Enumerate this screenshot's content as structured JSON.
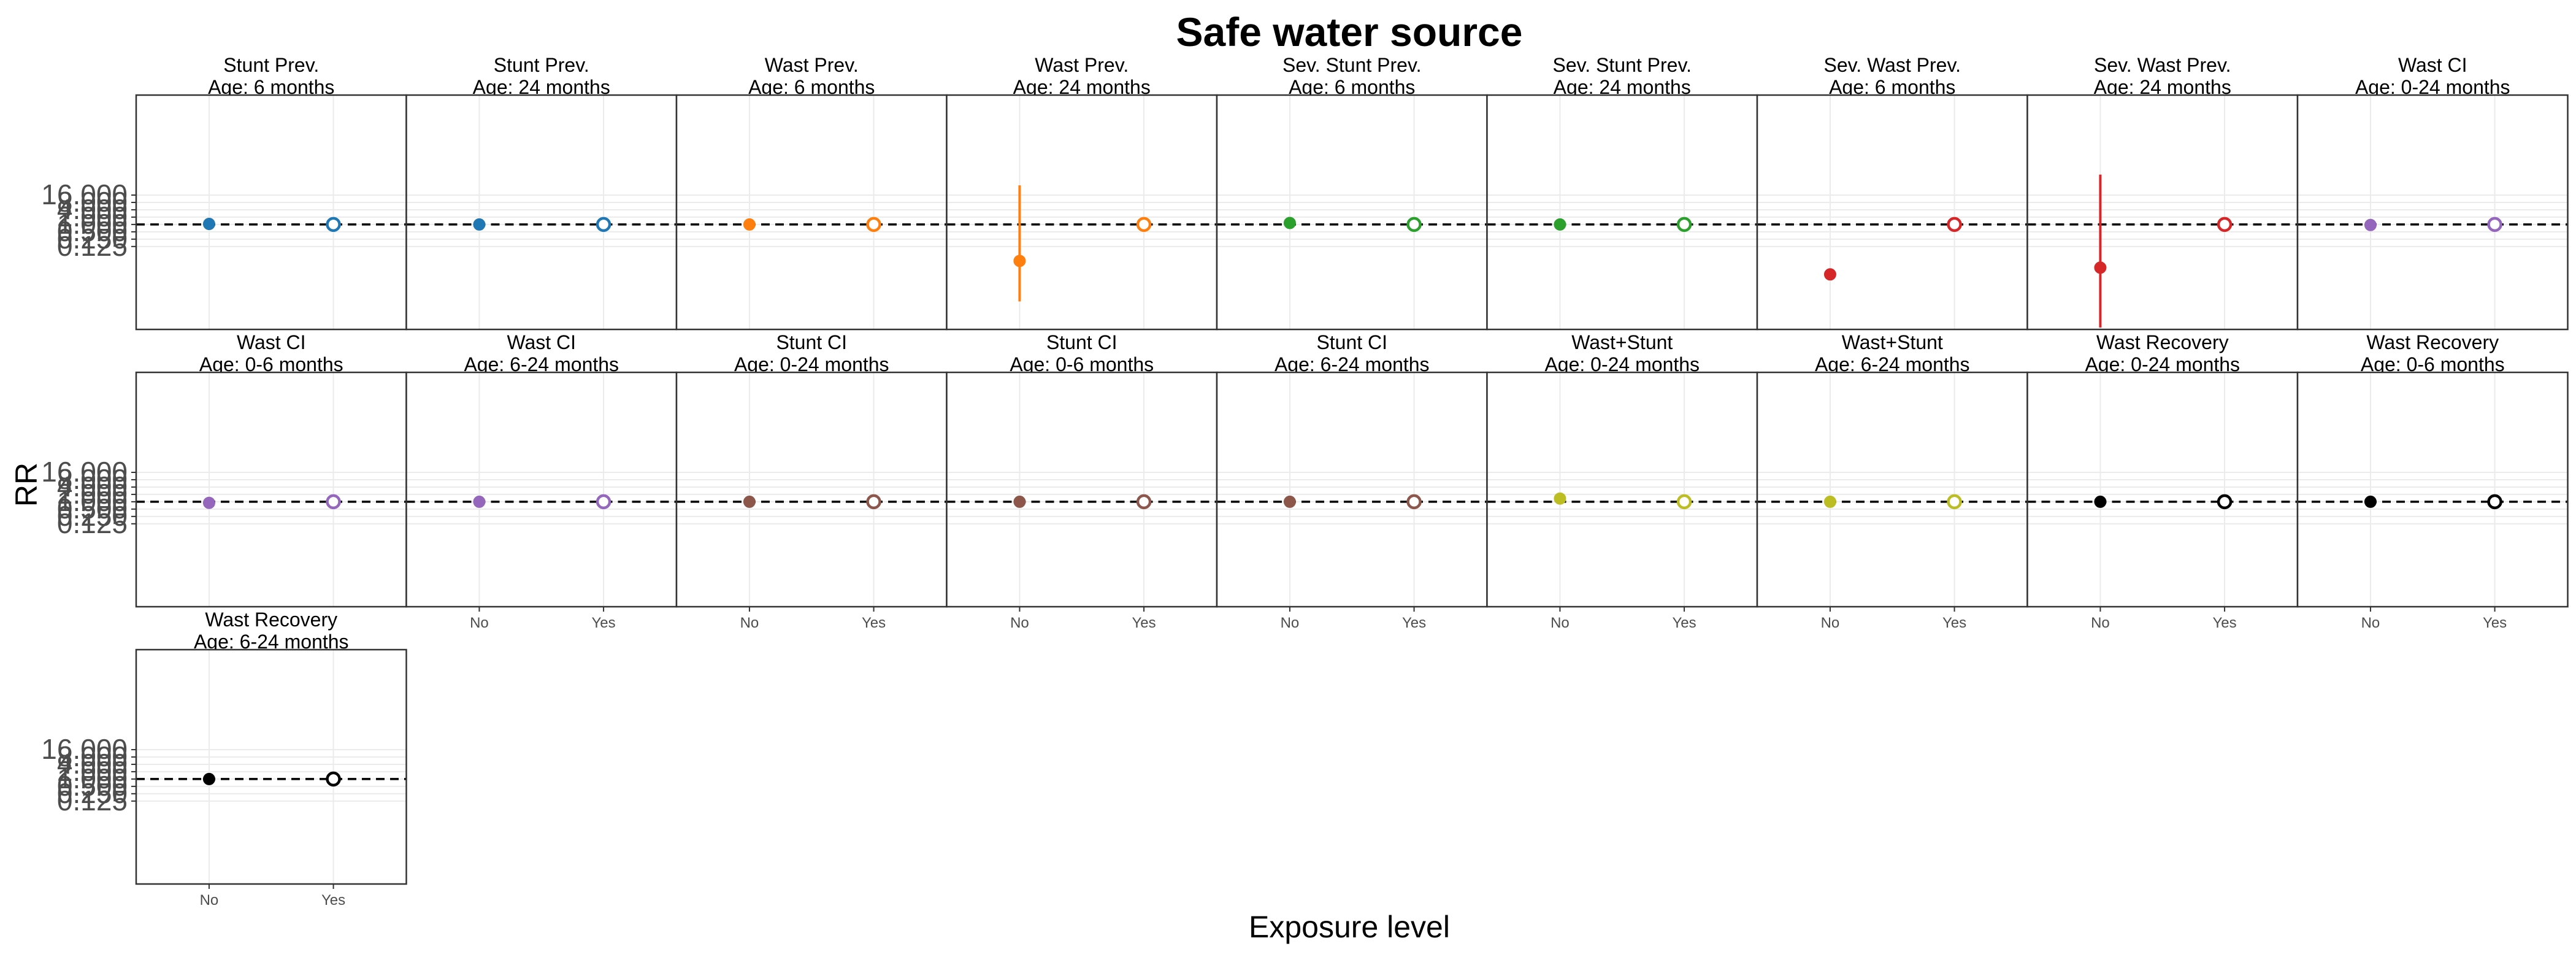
{
  "chart_data": {
    "type": "scatter",
    "title": "Safe water source",
    "xlabel": "Exposure level",
    "ylabel": "RR",
    "y_scale": "log",
    "ylim": [
      5e-05,
      200000
    ],
    "y_ticks": [
      "0.125",
      "0.250",
      "0.500",
      "1.000",
      "2.000",
      "4.000",
      "8.000",
      "16.000"
    ],
    "y_tick_values": [
      0.125,
      0.25,
      0.5,
      1,
      2,
      4,
      8,
      16
    ],
    "categories": [
      "No",
      "Yes"
    ],
    "reference_line": 1,
    "grid": true,
    "legend": "none",
    "panels": [
      {
        "strip": [
          "Stunt Prev.",
          "Age: 6 months"
        ],
        "color": "#1f77b4",
        "points": [
          {
            "x": "No",
            "y": 1.05
          },
          {
            "x": "Yes",
            "y": 1.0
          }
        ]
      },
      {
        "strip": [
          "Stunt Prev.",
          "Age: 24 months"
        ],
        "color": "#1f77b4",
        "points": [
          {
            "x": "No",
            "y": 1.0
          },
          {
            "x": "Yes",
            "y": 1.0
          }
        ]
      },
      {
        "strip": [
          "Wast Prev.",
          "Age: 6 months"
        ],
        "color": "#ff7f0e",
        "points": [
          {
            "x": "No",
            "y": 1.0
          },
          {
            "x": "Yes",
            "y": 1.0
          }
        ]
      },
      {
        "strip": [
          "Wast Prev.",
          "Age: 24 months"
        ],
        "color": "#ff7f0e",
        "points": [
          {
            "x": "No",
            "y": 0.032,
            "lower": 0.0007,
            "upper": 40
          },
          {
            "x": "Yes",
            "y": 1.0
          }
        ]
      },
      {
        "strip": [
          "Sev. Stunt Prev.",
          "Age: 6 months"
        ],
        "color": "#2ca02c",
        "points": [
          {
            "x": "No",
            "y": 1.15
          },
          {
            "x": "Yes",
            "y": 1.0
          }
        ]
      },
      {
        "strip": [
          "Sev. Stunt Prev.",
          "Age: 24 months"
        ],
        "color": "#2ca02c",
        "points": [
          {
            "x": "No",
            "y": 1.0
          },
          {
            "x": "Yes",
            "y": 1.0
          }
        ]
      },
      {
        "strip": [
          "Sev. Wast Prev.",
          "Age: 6 months"
        ],
        "color": "#d62728",
        "points": [
          {
            "x": "No",
            "y": 0.009
          },
          {
            "x": "Yes",
            "y": 1.0
          }
        ]
      },
      {
        "strip": [
          "Sev. Wast Prev.",
          "Age: 24 months"
        ],
        "color": "#d62728",
        "points": [
          {
            "x": "No",
            "y": 0.017,
            "lower": 6e-05,
            "upper": 110
          },
          {
            "x": "Yes",
            "y": 1.0
          }
        ]
      },
      {
        "strip": [
          "Wast CI",
          "Age: 0-24 months"
        ],
        "color": "#9467bd",
        "points": [
          {
            "x": "No",
            "y": 0.95
          },
          {
            "x": "Yes",
            "y": 1.0
          }
        ]
      },
      {
        "strip": [
          "Wast CI",
          "Age: 0-6 months"
        ],
        "color": "#9467bd",
        "points": [
          {
            "x": "No",
            "y": 0.9
          },
          {
            "x": "Yes",
            "y": 1.0
          }
        ]
      },
      {
        "strip": [
          "Wast CI",
          "Age: 6-24 months"
        ],
        "color": "#9467bd",
        "points": [
          {
            "x": "No",
            "y": 1.0
          },
          {
            "x": "Yes",
            "y": 1.0
          }
        ]
      },
      {
        "strip": [
          "Stunt CI",
          "Age: 0-24 months"
        ],
        "color": "#8c564b",
        "points": [
          {
            "x": "No",
            "y": 1.0
          },
          {
            "x": "Yes",
            "y": 1.0
          }
        ]
      },
      {
        "strip": [
          "Stunt CI",
          "Age: 0-6 months"
        ],
        "color": "#8c564b",
        "points": [
          {
            "x": "No",
            "y": 1.0
          },
          {
            "x": "Yes",
            "y": 1.0
          }
        ]
      },
      {
        "strip": [
          "Stunt CI",
          "Age: 6-24 months"
        ],
        "color": "#8c564b",
        "points": [
          {
            "x": "No",
            "y": 1.0
          },
          {
            "x": "Yes",
            "y": 1.0
          }
        ]
      },
      {
        "strip": [
          "Wast+Stunt",
          "Age: 0-24 months"
        ],
        "color": "#bcbd22",
        "points": [
          {
            "x": "No",
            "y": 1.35
          },
          {
            "x": "Yes",
            "y": 1.0
          }
        ]
      },
      {
        "strip": [
          "Wast+Stunt",
          "Age: 6-24 months"
        ],
        "color": "#bcbd22",
        "points": [
          {
            "x": "No",
            "y": 1.0
          },
          {
            "x": "Yes",
            "y": 1.0
          }
        ]
      },
      {
        "strip": [
          "Wast Recovery",
          "Age: 0-24 months"
        ],
        "color": "#000000",
        "points": [
          {
            "x": "No",
            "y": 1.0
          },
          {
            "x": "Yes",
            "y": 1.0
          }
        ]
      },
      {
        "strip": [
          "Wast Recovery",
          "Age: 0-6 months"
        ],
        "color": "#000000",
        "points": [
          {
            "x": "No",
            "y": 1.0
          },
          {
            "x": "Yes",
            "y": 1.0
          }
        ]
      },
      {
        "strip": [
          "Wast Recovery",
          "Age: 6-24 months"
        ],
        "color": "#000000",
        "points": [
          {
            "x": "No",
            "y": 1.0
          },
          {
            "x": "Yes",
            "y": 1.0
          }
        ]
      }
    ]
  }
}
